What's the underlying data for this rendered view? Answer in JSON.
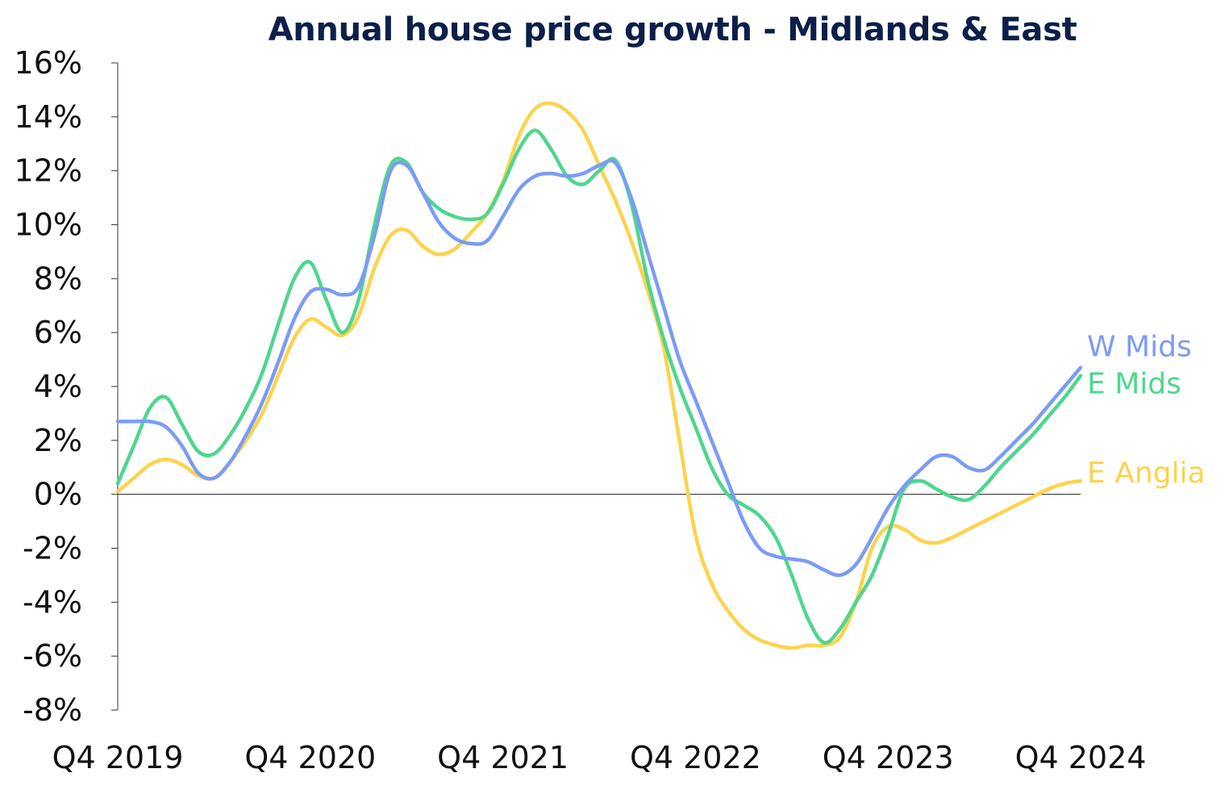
{
  "chart_data": {
    "type": "line",
    "title": "Annual house price growth - Midlands & East",
    "xlabel": "",
    "ylabel": "",
    "ylim": [
      -8,
      16
    ],
    "y_ticks": [
      16,
      14,
      12,
      10,
      8,
      6,
      4,
      2,
      0,
      -2,
      -4,
      -6,
      -8
    ],
    "y_tick_labels": [
      "16%",
      "14%",
      "12%",
      "10%",
      "8%",
      "6%",
      "4%",
      "2%",
      "0%",
      "-2%",
      "-4%",
      "-6%",
      "-8%"
    ],
    "x_tick_labels": [
      "Q4 2019",
      "Q4 2020",
      "Q4 2021",
      "Q4 2022",
      "Q4 2023",
      "Q4 2024"
    ],
    "x_tick_positions_months": [
      0,
      12,
      24,
      36,
      48,
      60
    ],
    "x_unit": "months since Q4 2019",
    "grid": false,
    "zero_line": true,
    "legend": "inline labels at line ends (right)",
    "series": [
      {
        "name": "W Mids",
        "color": "#7b9cf5",
        "values": [
          2.7,
          2.7,
          2.7,
          2.5,
          1.8,
          0.8,
          0.6,
          1.2,
          2.2,
          3.4,
          4.9,
          6.5,
          7.5,
          7.6,
          7.4,
          7.7,
          9.6,
          12.0,
          12.2,
          11.2,
          10.1,
          9.5,
          9.3,
          9.4,
          10.3,
          11.3,
          11.8,
          11.9,
          11.8,
          11.9,
          12.2,
          12.3,
          11.0,
          9.0,
          7.0,
          5.0,
          3.5,
          2.0,
          0.5,
          -1.0,
          -2.0,
          -2.3,
          -2.4,
          -2.5,
          -2.8,
          -3.0,
          -2.6,
          -1.6,
          -0.5,
          0.3,
          0.9,
          1.4,
          1.4,
          1.0,
          0.9,
          1.4,
          2.0,
          2.6,
          3.3,
          4.0,
          4.7
        ]
      },
      {
        "name": "E Mids",
        "color": "#4fd68e",
        "values": [
          0.4,
          1.8,
          3.2,
          3.6,
          2.6,
          1.6,
          1.5,
          2.2,
          3.2,
          4.5,
          6.3,
          8.0,
          8.6,
          7.2,
          6.0,
          7.2,
          10.0,
          12.2,
          12.3,
          11.2,
          10.6,
          10.3,
          10.2,
          10.4,
          11.5,
          12.8,
          13.5,
          12.8,
          11.8,
          11.5,
          12.0,
          12.4,
          10.8,
          8.0,
          5.8,
          4.0,
          2.5,
          1.0,
          0.0,
          -0.4,
          -0.8,
          -1.6,
          -3.0,
          -4.6,
          -5.5,
          -5.0,
          -4.0,
          -3.0,
          -1.5,
          0.2,
          0.5,
          0.2,
          -0.1,
          -0.2,
          0.3,
          1.0,
          1.6,
          2.2,
          2.9,
          3.6,
          4.4
        ]
      },
      {
        "name": "E Anglia",
        "color": "#fcd34d",
        "values": [
          0.1,
          0.6,
          1.1,
          1.3,
          1.1,
          0.7,
          0.6,
          1.2,
          2.0,
          3.0,
          4.4,
          5.8,
          6.5,
          6.2,
          5.9,
          6.6,
          8.4,
          9.6,
          9.8,
          9.2,
          8.9,
          9.1,
          9.7,
          10.4,
          11.6,
          13.3,
          14.3,
          14.5,
          14.2,
          13.5,
          12.2,
          10.9,
          9.4,
          7.6,
          5.5,
          2.0,
          -1.5,
          -3.3,
          -4.3,
          -5.0,
          -5.4,
          -5.6,
          -5.7,
          -5.6,
          -5.6,
          -5.3,
          -4.0,
          -2.0,
          -1.2,
          -1.3,
          -1.7,
          -1.8,
          -1.6,
          -1.3,
          -1.0,
          -0.7,
          -0.4,
          -0.1,
          0.2,
          0.4,
          0.5
        ]
      }
    ]
  }
}
